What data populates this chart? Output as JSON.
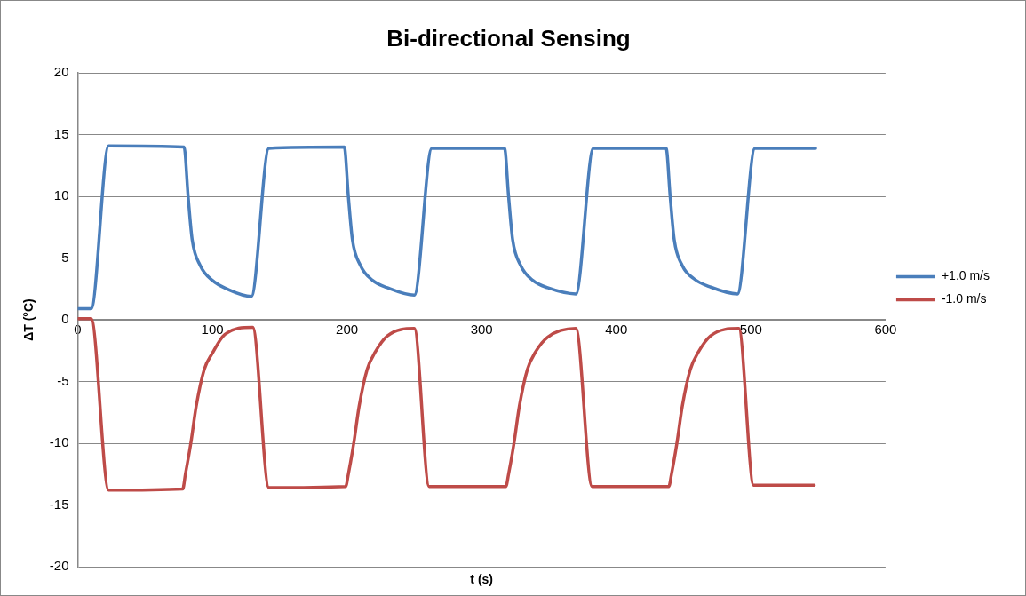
{
  "chart_data": {
    "type": "line",
    "title": "Bi-directional Sensing",
    "xlabel": "t (s)",
    "ylabel": "ΔT (°C)",
    "xlim": [
      0,
      600
    ],
    "xticks": [
      0,
      100,
      200,
      300,
      400,
      500,
      600
    ],
    "ylim": [
      -20,
      20
    ],
    "yticks": [
      -20,
      -15,
      -10,
      -5,
      0,
      5,
      10,
      15,
      20
    ],
    "grid": "y",
    "legend": "right",
    "marker": "none",
    "line_style": "solid",
    "series": [
      {
        "name": "+1.0 m/s",
        "color": "#4a7ebb",
        "x": [
          0,
          10,
          23,
          79,
          82,
          85,
          91,
          100,
          111,
          129,
          142,
          198,
          201,
          204,
          210,
          219,
          230,
          250,
          263,
          317,
          320,
          323,
          329,
          338,
          349,
          370,
          383,
          437,
          440,
          443,
          449,
          458,
          469,
          490,
          503,
          548
        ],
        "values": [
          0.9,
          0.9,
          14.1,
          14.0,
          10,
          6.5,
          4.4,
          3.2,
          2.5,
          1.9,
          13.9,
          14.0,
          10,
          6.5,
          4.4,
          3.2,
          2.6,
          2.0,
          13.9,
          13.9,
          10,
          6.5,
          4.4,
          3.2,
          2.6,
          2.1,
          13.9,
          13.9,
          10,
          6.5,
          4.4,
          3.3,
          2.7,
          2.1,
          13.9,
          13.9
        ]
      },
      {
        "name": "-1.0 m/s",
        "color": "#be4b48",
        "x": [
          0,
          10,
          23,
          78,
          80,
          84,
          88,
          94,
          100,
          109,
          130,
          142,
          199,
          201,
          205,
          209,
          215,
          221,
          230,
          250,
          261,
          318,
          320,
          324,
          328,
          334,
          340,
          349,
          370,
          382,
          439,
          441,
          445,
          449,
          455,
          461,
          470,
          491,
          502,
          547
        ],
        "values": [
          0.1,
          0.1,
          -13.8,
          -13.7,
          -12.5,
          -10,
          -7,
          -4,
          -2.7,
          -1.2,
          -0.6,
          -13.6,
          -13.5,
          -12.5,
          -10,
          -7,
          -4,
          -2.6,
          -1.3,
          -0.7,
          -13.5,
          -13.5,
          -12.5,
          -10,
          -7,
          -4,
          -2.6,
          -1.4,
          -0.7,
          -13.5,
          -13.5,
          -12.5,
          -10,
          -7,
          -4,
          -2.6,
          -1.3,
          -0.7,
          -13.4,
          -13.4
        ]
      }
    ]
  }
}
